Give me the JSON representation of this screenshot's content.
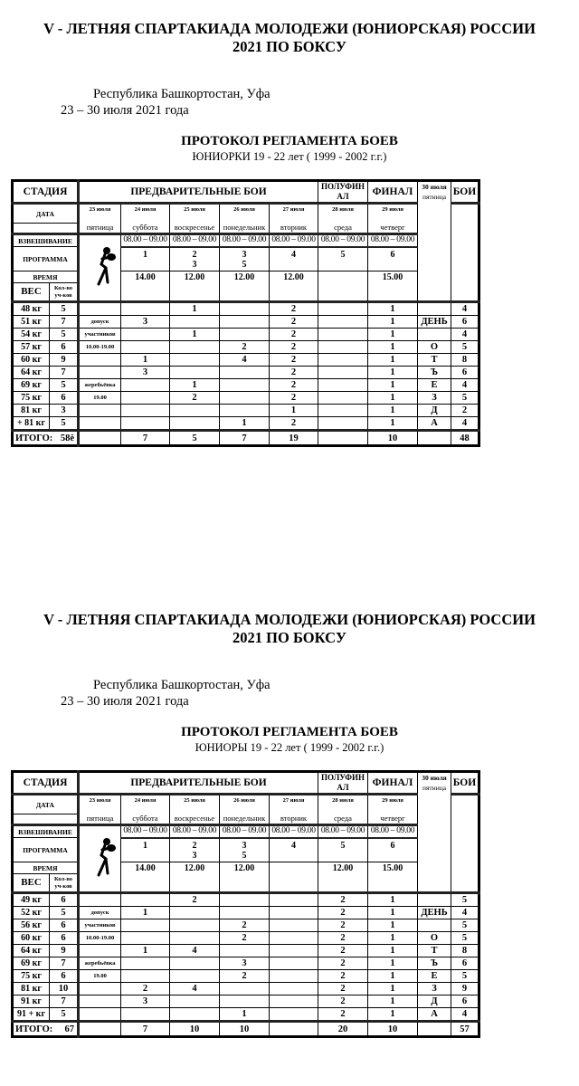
{
  "sections": [
    {
      "title_line1": "V - ЛЕТНЯЯ СПАРТАКИАДА МОЛОДЕЖИ (ЮНИОРСКАЯ) РОССИИ",
      "title_line2": "2021 ПО БОКСУ",
      "location": "Республика Башкортостан, Уфа",
      "dates": "23 – 30 июля 2021 года",
      "protocol_title": "ПРОТОКОЛ РЕГЛАМЕНТА БОЕВ",
      "group": "ЮНИОРКИ 19 - 22 лет ( 1999 - 2002 г.г.)",
      "times": [
        "14.00",
        "12.00",
        "12.00",
        "12.00",
        "",
        "15.00"
      ],
      "rows": [
        {
          "weight": "48 кг",
          "count": "5",
          "note": "",
          "v": [
            "",
            "1",
            "",
            "2",
            "",
            "1"
          ],
          "rest": "",
          "bouts": "4"
        },
        {
          "weight": "51 кг",
          "count": "7",
          "note": "допуск",
          "v": [
            "3",
            "",
            "",
            "2",
            "",
            "1"
          ],
          "rest": "ДЕНЬ",
          "bouts": "6"
        },
        {
          "weight": "54 кг",
          "count": "5",
          "note": "участников",
          "v": [
            "",
            "1",
            "",
            "2",
            "",
            "1"
          ],
          "rest": "",
          "bouts": "4"
        },
        {
          "weight": "57 кг",
          "count": "6",
          "note": "10.00-19.00",
          "v": [
            "",
            "",
            "2",
            "2",
            "",
            "1"
          ],
          "rest": "О",
          "bouts": "5"
        },
        {
          "weight": "60 кг",
          "count": "9",
          "note": "",
          "v": [
            "1",
            "",
            "4",
            "2",
            "",
            "1"
          ],
          "rest": "Т",
          "bouts": "8"
        },
        {
          "weight": "64 кг",
          "count": "7",
          "note": "",
          "v": [
            "3",
            "",
            "",
            "2",
            "",
            "1"
          ],
          "rest": "Ъ",
          "bouts": "6"
        },
        {
          "weight": "69 кг",
          "count": "5",
          "note": "жеребьёвка",
          "v": [
            "",
            "1",
            "",
            "2",
            "",
            "1"
          ],
          "rest": "Е",
          "bouts": "4"
        },
        {
          "weight": "75 кг",
          "count": "6",
          "note": "19.00",
          "v": [
            "",
            "2",
            "",
            "2",
            "",
            "1"
          ],
          "rest": "З",
          "bouts": "5"
        },
        {
          "weight": "81 кг",
          "count": "3",
          "note": "",
          "v": [
            "",
            "",
            "",
            "1",
            "",
            "1"
          ],
          "rest": "Д",
          "bouts": "2"
        },
        {
          "weight": "+ 81 кг",
          "count": "5",
          "note": "",
          "v": [
            "",
            "",
            "1",
            "2",
            "",
            "1"
          ],
          "rest": "А",
          "bouts": "4"
        }
      ],
      "totals": {
        "label": "ИТОГО:",
        "count": "58ё",
        "v": [
          "7",
          "5",
          "7",
          "19",
          "",
          "10"
        ],
        "bouts": "48"
      }
    },
    {
      "title_line1": "V - ЛЕТНЯЯ СПАРТАКИАДА МОЛОДЕЖИ (ЮНИОРСКАЯ) РОССИИ",
      "title_line2": "2021 ПО БОКСУ",
      "location": "Республика Башкортостан, Уфа",
      "dates": "23 – 30 июля 2021 года",
      "protocol_title": "ПРОТОКОЛ РЕГЛАМЕНТА БОЕВ",
      "group": "ЮНИОРЫ 19 - 22 лет ( 1999 - 2002 г.г.)",
      "times": [
        "14.00",
        "12.00",
        "12.00",
        "",
        "12.00",
        "15.00"
      ],
      "rows": [
        {
          "weight": "49 кг",
          "count": "6",
          "note": "",
          "v": [
            "",
            "2",
            "",
            "",
            "2",
            "1"
          ],
          "rest": "",
          "bouts": "5"
        },
        {
          "weight": "52 кг",
          "count": "5",
          "note": "допуск",
          "v": [
            "1",
            "",
            "",
            "",
            "2",
            "1"
          ],
          "rest": "ДЕНЬ",
          "bouts": "4"
        },
        {
          "weight": "56 кг",
          "count": "6",
          "note": "участников",
          "v": [
            "",
            "",
            "2",
            "",
            "2",
            "1"
          ],
          "rest": "",
          "bouts": "5"
        },
        {
          "weight": "60 кг",
          "count": "6",
          "note": "10.00-19.00",
          "v": [
            "",
            "",
            "2",
            "",
            "2",
            "1"
          ],
          "rest": "О",
          "bouts": "5"
        },
        {
          "weight": "64 кг",
          "count": "9",
          "note": "",
          "v": [
            "1",
            "4",
            "",
            "",
            "2",
            "1"
          ],
          "rest": "Т",
          "bouts": "8"
        },
        {
          "weight": "69 кг",
          "count": "7",
          "note": "жеребьёвка",
          "v": [
            "",
            "",
            "3",
            "",
            "2",
            "1"
          ],
          "rest": "Ъ",
          "bouts": "6"
        },
        {
          "weight": "75 кг",
          "count": "6",
          "note": "19.00",
          "v": [
            "",
            "",
            "2",
            "",
            "2",
            "1"
          ],
          "rest": "Е",
          "bouts": "5"
        },
        {
          "weight": "81 кг",
          "count": "10",
          "note": "",
          "v": [
            "2",
            "4",
            "",
            "",
            "2",
            "1"
          ],
          "rest": "З",
          "bouts": "9"
        },
        {
          "weight": "91 кг",
          "count": "7",
          "note": "",
          "v": [
            "3",
            "",
            "",
            "",
            "2",
            "1"
          ],
          "rest": "Д",
          "bouts": "6"
        },
        {
          "weight": "91 + кг",
          "count": "5",
          "note": "",
          "v": [
            "",
            "",
            "1",
            "",
            "2",
            "1"
          ],
          "rest": "А",
          "bouts": "4"
        }
      ],
      "totals": {
        "label": "ИТОГО:",
        "count": "67",
        "v": [
          "7",
          "10",
          "10",
          "",
          "20",
          "10"
        ],
        "bouts": "57"
      }
    }
  ],
  "header": {
    "stage": "СТАДИЯ",
    "prelim": "ПРЕДВАРИТЕЛЬНЫЕ БОИ",
    "semifinal": "ПОЛУФИН\nАЛ",
    "final": "ФИНАЛ",
    "rest_date": "30 июля",
    "rest_weekday": "пятница",
    "bouts": "БОИ",
    "date_label": "ДАТА",
    "weigh_label": "ВЗВЕШИВАНИЕ",
    "program_label": "ПРОГРАММА",
    "time_label": "ВРЕМЯ",
    "weight_label": "ВЕС",
    "count_label": "Кол-во\nуч-ков",
    "first_day": {
      "date": "23 июля",
      "weekday": "пятница"
    },
    "days": [
      {
        "date": "24 июля",
        "weekday": "суббота",
        "weigh": "08.00 – 09.00",
        "program": "1"
      },
      {
        "date": "25 июля",
        "weekday": "воскресенье",
        "weigh": "08.00 – 09.00",
        "program": "2\n3"
      },
      {
        "date": "26 июля",
        "weekday": "понедельник",
        "weigh": "08.00 – 09.00",
        "program": "3\n5"
      },
      {
        "date": "27 июля",
        "weekday": "вторник",
        "weigh": "08.00 – 09.00",
        "program": "4"
      },
      {
        "date": "28 июля",
        "weekday": "среда",
        "weigh": "08.00 – 09.00",
        "program": "5"
      },
      {
        "date": "29 июля",
        "weekday": "четверг",
        "weigh": "08.00 – 09.00",
        "program": "6"
      }
    ],
    "boxer_icon": "boxer-icon"
  }
}
